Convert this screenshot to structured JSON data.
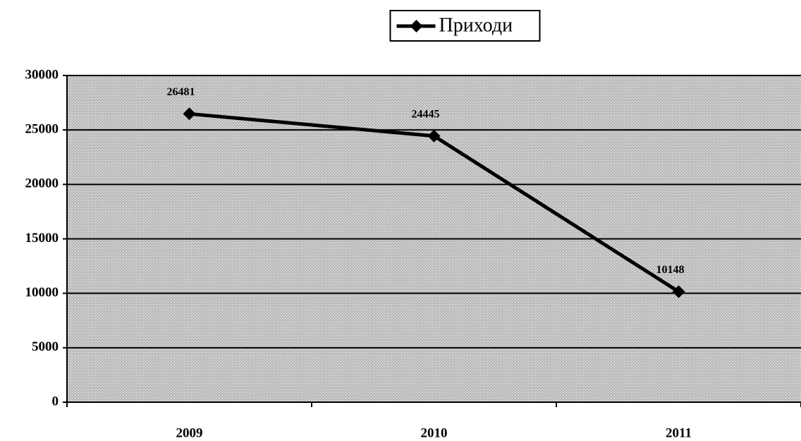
{
  "chart_data": {
    "type": "line",
    "categories": [
      "2009",
      "2010",
      "2011"
    ],
    "series": [
      {
        "name": "Приходи",
        "color": "#000000",
        "values": [
          26481,
          24445,
          10148
        ]
      }
    ],
    "ylim": [
      0,
      30000
    ],
    "yticks": [
      0,
      5000,
      10000,
      15000,
      20000,
      25000,
      30000
    ],
    "grid": true,
    "legend": "top",
    "data_labels": true
  }
}
